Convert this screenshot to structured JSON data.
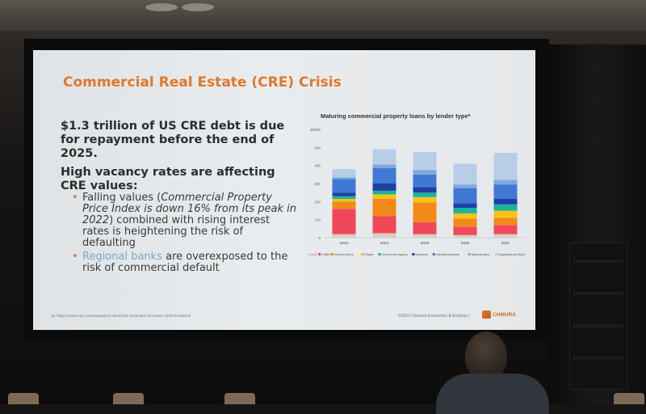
{
  "slide": {
    "title": "Commercial Real Estate (CRE) Crisis",
    "bullet1": "$1.3 trillion of US CRE debt is due for repayment before the end of 2025.",
    "heading2": "High vacancy rates are affecting CRE values:",
    "sub1_a": "Falling values (",
    "sub1_b": "Commercial Property Price Index is down 16% from its peak in 2022",
    "sub1_c": ") combined with rising interest rates is heightening the risk of defaulting",
    "sub2_link": "Regional banks",
    "sub2_rest": " are overexposed to the risk of commercial default",
    "footnote": "16   *https://www.msci.com/www/quick-take/cmbs-dominates-first-wave-of/03740158548",
    "copyright": "©2023 Chimura Economics & Analytics  |",
    "logo_text": "CHMURA",
    "colors": {
      "title": "#e0782a",
      "bullet": "#e0782a",
      "link": "#7aa7c9"
    }
  },
  "chart_data": {
    "type": "bar",
    "stacked": true,
    "title": "Maturing commercial property loans by lender type*",
    "categories": [
      "2023",
      "2024",
      "2025",
      "2026",
      "2027"
    ],
    "y_ticks": [
      "$600b",
      "500",
      "400",
      "300",
      "200",
      "100",
      "0"
    ],
    "ylim": [
      0,
      600
    ],
    "series": [
      {
        "name": "CLO",
        "color": "#d9cfc3",
        "values": [
          20,
          25,
          20,
          15,
          20
        ]
      },
      {
        "name": "CMBS",
        "color": "#f0485a",
        "values": [
          140,
          95,
          65,
          45,
          50
        ]
      },
      {
        "name": "Investor-Driven",
        "color": "#f28a1a",
        "values": [
          40,
          95,
          110,
          45,
          40
        ]
      },
      {
        "name": "Private",
        "color": "#f6c21b",
        "values": [
          15,
          25,
          30,
          30,
          40
        ]
      },
      {
        "name": "Government Agency",
        "color": "#19b59a",
        "values": [
          15,
          20,
          25,
          30,
          35
        ]
      },
      {
        "name": "Insurance",
        "color": "#1f3fa6",
        "values": [
          20,
          40,
          30,
          25,
          30
        ]
      },
      {
        "name": "International Bank",
        "color": "#3f79d3",
        "values": [
          75,
          85,
          70,
          85,
          80
        ]
      },
      {
        "name": "National Bank",
        "color": "#7fa9de",
        "values": [
          10,
          20,
          25,
          20,
          25
        ]
      },
      {
        "name": "Regional/Local Bank",
        "color": "#b8cde8",
        "values": [
          45,
          85,
          100,
          115,
          150
        ]
      }
    ],
    "legend_position": "bottom"
  }
}
